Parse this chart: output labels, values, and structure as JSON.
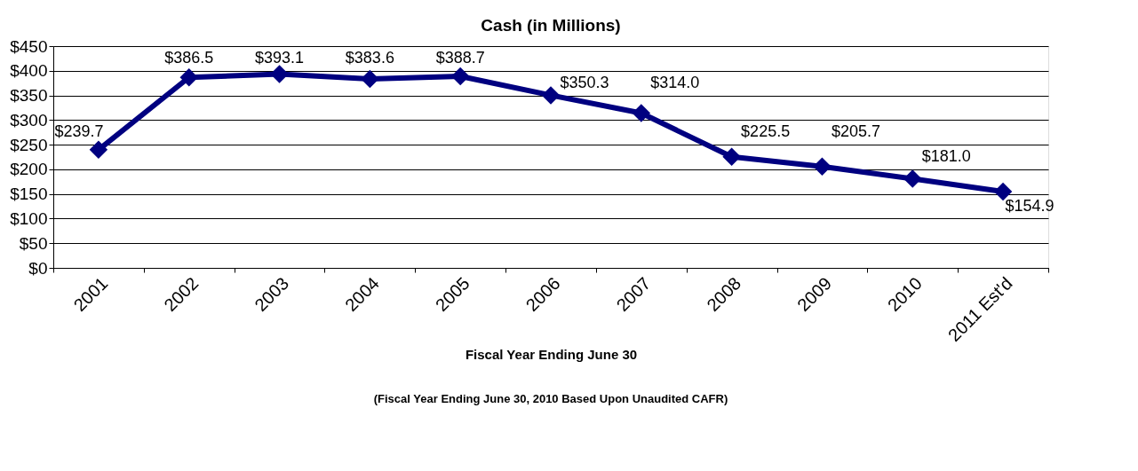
{
  "chart_data": {
    "type": "line",
    "title": "Cash (in Millions)",
    "xlabel": "Fiscal Year Ending June 30",
    "annotations": [
      "(Fiscal Year Ending June 30, 2010 Based Upon Unaudited CAFR)"
    ],
    "categories": [
      "2001",
      "2002",
      "2003",
      "2004",
      "2005",
      "2006",
      "2007",
      "2008",
      "2009",
      "2010",
      "2011 Est'd"
    ],
    "series": [
      {
        "color": "#000080",
        "values": [
          239.7,
          386.5,
          393.1,
          383.6,
          388.7,
          350.3,
          314.0,
          225.5,
          205.7,
          181.0,
          154.9
        ],
        "value_labels": [
          "$239.7",
          "$386.5",
          "$393.1",
          "$383.6",
          "$388.7",
          "$350.3",
          "$314.0",
          "$225.5",
          "$205.7",
          "$181.0",
          "$154.9"
        ]
      }
    ],
    "ylim": [
      0,
      450
    ],
    "yticks": [
      {
        "value": 0,
        "label": "$0"
      },
      {
        "value": 50,
        "label": "$50"
      },
      {
        "value": 100,
        "label": "$100"
      },
      {
        "value": 150,
        "label": "$150"
      },
      {
        "value": 200,
        "label": "$200"
      },
      {
        "value": 250,
        "label": "$250"
      },
      {
        "value": 300,
        "label": "$300"
      },
      {
        "value": 350,
        "label": "$350"
      },
      {
        "value": 400,
        "label": "$400"
      },
      {
        "value": 450,
        "label": "$450"
      }
    ],
    "grid": "y",
    "marker": "diamond",
    "line_style": "solid"
  }
}
